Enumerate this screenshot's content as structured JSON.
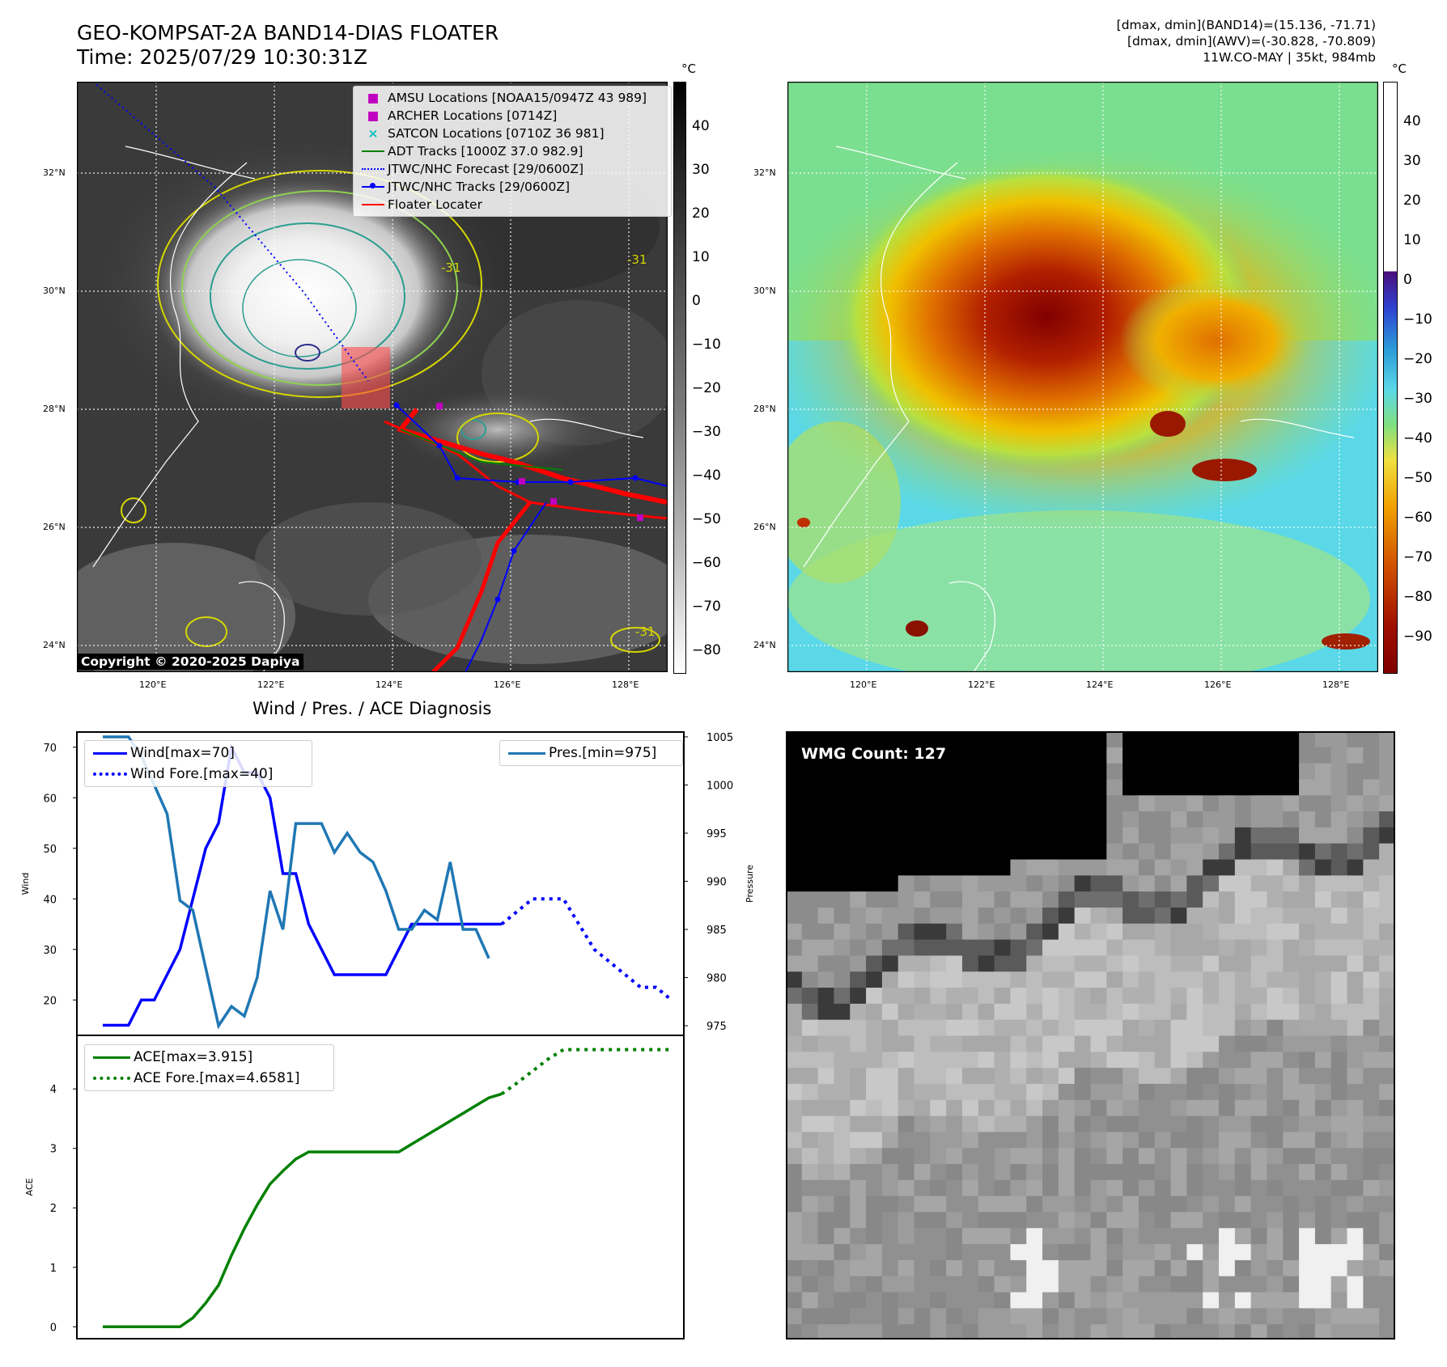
{
  "header": {
    "title_line1": "GEO-KOMPSAT-2A BAND14-DIAS FLOATER",
    "title_line2": "Time: 2025/07/29 10:30:31Z",
    "info_line1": "[dmax, dmin](BAND14)=(15.136, -71.71)",
    "info_line2": "[dmax, dmin](AWV)=(-30.828, -70.809)",
    "info_line3": "11W.CO-MAY | 35kt, 984mb"
  },
  "map_left": {
    "lat_labels": [
      "32°N",
      "30°N",
      "28°N",
      "26°N",
      "24°N"
    ],
    "lon_labels": [
      "120°E",
      "122°E",
      "124°E",
      "126°E",
      "128°E"
    ],
    "legend": [
      {
        "label": "AMSU Locations [NOAA15/0947Z 43 989]",
        "marker": "square",
        "color": "#c000c0"
      },
      {
        "label": "ARCHER Locations [0714Z]",
        "marker": "square",
        "color": "#c000c0"
      },
      {
        "label": "SATCON Locations [0710Z 36 981]",
        "marker": "x",
        "color": "#00c0c0"
      },
      {
        "label": "ADT Tracks [1000Z 37.0 982.9]",
        "marker": "line",
        "color": "#008000"
      },
      {
        "label": "JTWC/NHC Forecast [29/0600Z]",
        "marker": "dotted",
        "color": "#0000ff"
      },
      {
        "label": "JTWC/NHC Tracks [29/0600Z]",
        "marker": "line-dot",
        "color": "#0000ff"
      },
      {
        "label": "Floater Locater",
        "marker": "line",
        "color": "#ff0000"
      }
    ],
    "copyright": "Copyright © 2020-2025 Dapiya",
    "contour_label": "-31",
    "colorbar_unit": "°C",
    "colorbar_ticks": [
      "40",
      "30",
      "20",
      "10",
      "0",
      "−10",
      "−20",
      "−30",
      "−40",
      "−50",
      "−60",
      "−70",
      "−80"
    ]
  },
  "map_right": {
    "lat_labels": [
      "32°N",
      "30°N",
      "28°N",
      "26°N",
      "24°N"
    ],
    "lon_labels": [
      "120°E",
      "122°E",
      "124°E",
      "126°E",
      "128°E"
    ],
    "colorbar_unit": "°C",
    "colorbar_ticks": [
      "40",
      "30",
      "20",
      "10",
      "0",
      "−10",
      "−20",
      "−30",
      "−40",
      "−50",
      "−60",
      "−70",
      "−80",
      "−90"
    ]
  },
  "chart_data": [
    {
      "type": "line",
      "title": "Wind / Pres. / ACE Diagnosis",
      "ylabel": "Wind",
      "ylim": [
        13,
        73
      ],
      "yticks": [
        20,
        30,
        40,
        50,
        60,
        70
      ],
      "series": [
        {
          "name": "Wind[max=70]",
          "style": "solid",
          "color": "#0000ff",
          "values": [
            15,
            15,
            15,
            20,
            20,
            25,
            30,
            40,
            50,
            55,
            70,
            65,
            65,
            60,
            45,
            45,
            35,
            30,
            25,
            25,
            25,
            25,
            25,
            30,
            35,
            35,
            35,
            35,
            35,
            35,
            35,
            35
          ]
        },
        {
          "name": "Wind Fore.[max=40]",
          "style": "dotted",
          "color": "#0000ff",
          "values": [
            35,
            37.5,
            40,
            40,
            40,
            35,
            30,
            27.5,
            25,
            22.5,
            22.5,
            20
          ]
        }
      ],
      "y2label": "Pressure",
      "y2lim": [
        974,
        1005.5
      ],
      "y2ticks": [
        975,
        980,
        985,
        990,
        995,
        1000,
        1005
      ],
      "series2": [
        {
          "name": "Pres.[min=975]",
          "style": "solid",
          "color": "#1f77b4",
          "values": [
            1005,
            1005,
            1005,
            1003,
            1000,
            997,
            988,
            987,
            981,
            975,
            977,
            976,
            980,
            989,
            985,
            996,
            996,
            996,
            993,
            995,
            993,
            992,
            989,
            985,
            985,
            987,
            986,
            992,
            985,
            985,
            982
          ]
        }
      ]
    },
    {
      "type": "line",
      "ylabel": "ACE",
      "ylim": [
        -0.2,
        4.9
      ],
      "yticks": [
        0,
        1,
        2,
        3,
        4
      ],
      "series": [
        {
          "name": "ACE[max=3.915]",
          "style": "solid",
          "color": "#008000",
          "values": [
            0,
            0,
            0,
            0,
            0,
            0,
            0,
            0.15,
            0.4,
            0.7,
            1.2,
            1.65,
            2.05,
            2.4,
            2.62,
            2.82,
            2.94,
            2.94,
            2.94,
            2.94,
            2.94,
            2.94,
            2.94,
            2.94,
            3.07,
            3.2,
            3.33,
            3.46,
            3.59,
            3.72,
            3.85,
            3.915
          ]
        },
        {
          "name": "ACE Fore.[max=4.6581]",
          "style": "dotted",
          "color": "#008000",
          "values": [
            3.915,
            4.1,
            4.3,
            4.5,
            4.66,
            4.66,
            4.66,
            4.66,
            4.66,
            4.66,
            4.66,
            4.66
          ]
        }
      ]
    }
  ],
  "wmg": {
    "label": "WMG Count: 127"
  }
}
